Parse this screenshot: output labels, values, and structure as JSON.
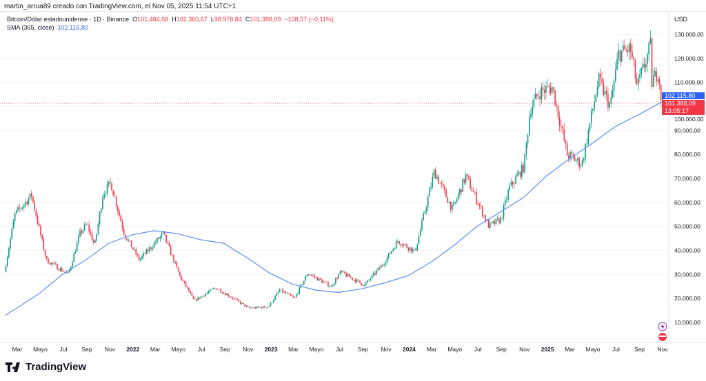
{
  "caption": "martin_arrua89 creado con TradingView.com, el Nov 05, 2025 11:54 UTC+1",
  "legend": {
    "symbol": "Bitcoin/Dólar estadounidense · 1D · Binance",
    "o_label": "O",
    "o": "101.484,68",
    "h_label": "H",
    "h": "102.360,67",
    "l_label": "L",
    "l": "98.978,84",
    "c_label": "C",
    "c": "101.388,09",
    "change": "−108,57 (−0,11%)",
    "sma_label": "SMA (365, close)",
    "sma_value": "102.115,80"
  },
  "currency": "USD",
  "badges": {
    "sma": "102.115,80",
    "price": "101.388,09",
    "countdown": "13:05:17"
  },
  "footer_logo": "TradingView",
  "colors": {
    "up": "#089981",
    "down": "#f23645",
    "sma": "#5b8def",
    "sma_badge": "#2962ff",
    "price_badge": "#f23645"
  },
  "chart_data": {
    "type": "candlestick",
    "title": "Bitcoin/Dólar estadounidense · 1D · Binance",
    "ylim": [
      0,
      135000
    ],
    "y_ticks": [
      "10.000,00",
      "20.000,00",
      "30.000,00",
      "40.000,00",
      "50.000,00",
      "60.000,00",
      "70.000,00",
      "80.000,00",
      "90.000,00",
      "100.000,00",
      "110.000,00",
      "120.000,00",
      "130.000,00"
    ],
    "y_tick_values": [
      10000,
      20000,
      30000,
      40000,
      50000,
      60000,
      70000,
      80000,
      90000,
      100000,
      110000,
      120000,
      130000
    ],
    "x_ticks": [
      {
        "label": "Mar",
        "date": "2021-03-01"
      },
      {
        "label": "Mayo",
        "date": "2021-05-01"
      },
      {
        "label": "Jul",
        "date": "2021-07-01"
      },
      {
        "label": "Sep",
        "date": "2021-09-01"
      },
      {
        "label": "Nov",
        "date": "2021-11-01"
      },
      {
        "label": "2022",
        "date": "2022-01-01"
      },
      {
        "label": "Mar",
        "date": "2022-03-01"
      },
      {
        "label": "Mayo",
        "date": "2022-05-01"
      },
      {
        "label": "Jul",
        "date": "2022-07-01"
      },
      {
        "label": "Sep",
        "date": "2022-09-01"
      },
      {
        "label": "Nov",
        "date": "2022-11-01"
      },
      {
        "label": "2023",
        "date": "2023-01-01"
      },
      {
        "label": "Mar",
        "date": "2023-03-01"
      },
      {
        "label": "Mayo",
        "date": "2023-05-01"
      },
      {
        "label": "Jul",
        "date": "2023-07-01"
      },
      {
        "label": "Sep",
        "date": "2023-09-01"
      },
      {
        "label": "Nov",
        "date": "2023-11-01"
      },
      {
        "label": "2024",
        "date": "2024-01-01"
      },
      {
        "label": "Mar",
        "date": "2024-03-01"
      },
      {
        "label": "Mayo",
        "date": "2024-05-01"
      },
      {
        "label": "Jul",
        "date": "2024-07-01"
      },
      {
        "label": "Sep",
        "date": "2024-09-01"
      },
      {
        "label": "Nov",
        "date": "2024-11-01"
      },
      {
        "label": "2025",
        "date": "2025-01-01"
      },
      {
        "label": "Mar",
        "date": "2025-03-01"
      },
      {
        "label": "Mayo",
        "date": "2025-05-01"
      },
      {
        "label": "Jul",
        "date": "2025-07-01"
      },
      {
        "label": "Sep",
        "date": "2025-09-01"
      },
      {
        "label": "Nov",
        "date": "2025-11-01"
      }
    ],
    "price_path": [
      [
        "2021-02-01",
        31000
      ],
      [
        "2021-03-01",
        55000
      ],
      [
        "2021-04-14",
        63000
      ],
      [
        "2021-05-23",
        36000
      ],
      [
        "2021-07-20",
        30000
      ],
      [
        "2021-08-20",
        47000
      ],
      [
        "2021-09-07",
        51000
      ],
      [
        "2021-09-28",
        42000
      ],
      [
        "2021-10-20",
        64000
      ],
      [
        "2021-11-10",
        68000
      ],
      [
        "2021-12-15",
        47000
      ],
      [
        "2022-01-24",
        36000
      ],
      [
        "2022-03-28",
        47000
      ],
      [
        "2022-05-12",
        29000
      ],
      [
        "2022-06-18",
        19000
      ],
      [
        "2022-08-14",
        24500
      ],
      [
        "2022-11-09",
        16000
      ],
      [
        "2022-12-31",
        16500
      ],
      [
        "2023-01-30",
        23500
      ],
      [
        "2023-03-10",
        20000
      ],
      [
        "2023-04-14",
        30500
      ],
      [
        "2023-06-15",
        25000
      ],
      [
        "2023-07-10",
        31000
      ],
      [
        "2023-09-11",
        25500
      ],
      [
        "2023-10-31",
        34500
      ],
      [
        "2023-12-08",
        44000
      ],
      [
        "2024-01-23",
        39500
      ],
      [
        "2024-03-14",
        73000
      ],
      [
        "2024-05-01",
        57000
      ],
      [
        "2024-06-05",
        71000
      ],
      [
        "2024-08-05",
        50000
      ],
      [
        "2024-09-06",
        53000
      ],
      [
        "2024-09-28",
        66000
      ],
      [
        "2024-11-06",
        75000
      ],
      [
        "2024-11-22",
        99000
      ],
      [
        "2024-12-17",
        106000
      ],
      [
        "2025-01-20",
        108000
      ],
      [
        "2025-02-28",
        80000
      ],
      [
        "2025-04-08",
        76000
      ],
      [
        "2025-05-22",
        111000
      ],
      [
        "2025-06-22",
        100000
      ],
      [
        "2025-07-14",
        122000
      ],
      [
        "2025-08-14",
        124000
      ],
      [
        "2025-09-01",
        108000
      ],
      [
        "2025-10-06",
        125000
      ],
      [
        "2025-10-10",
        110000
      ],
      [
        "2025-10-27",
        115000
      ],
      [
        "2025-11-05",
        101388.09
      ]
    ],
    "series": [
      {
        "name": "SMA (365, close)",
        "points": [
          [
            "2021-02-01",
            13000
          ],
          [
            "2021-05-01",
            22000
          ],
          [
            "2021-07-01",
            30000
          ],
          [
            "2021-09-01",
            36000
          ],
          [
            "2021-11-01",
            43000
          ],
          [
            "2022-01-01",
            46500
          ],
          [
            "2022-03-01",
            48200
          ],
          [
            "2022-05-01",
            47000
          ],
          [
            "2022-07-01",
            44500
          ],
          [
            "2022-09-01",
            43000
          ],
          [
            "2022-11-01",
            37000
          ],
          [
            "2023-01-01",
            30500
          ],
          [
            "2023-03-01",
            26000
          ],
          [
            "2023-05-01",
            23500
          ],
          [
            "2023-07-01",
            22500
          ],
          [
            "2023-09-01",
            24000
          ],
          [
            "2023-11-01",
            26500
          ],
          [
            "2024-01-01",
            29500
          ],
          [
            "2024-03-01",
            35000
          ],
          [
            "2024-05-01",
            42000
          ],
          [
            "2024-07-01",
            50000
          ],
          [
            "2024-09-01",
            56000
          ],
          [
            "2024-11-01",
            62000
          ],
          [
            "2025-01-01",
            71000
          ],
          [
            "2025-03-01",
            78000
          ],
          [
            "2025-05-01",
            84500
          ],
          [
            "2025-07-01",
            91500
          ],
          [
            "2025-09-01",
            96500
          ],
          [
            "2025-11-05",
            102115.8
          ]
        ]
      }
    ]
  }
}
